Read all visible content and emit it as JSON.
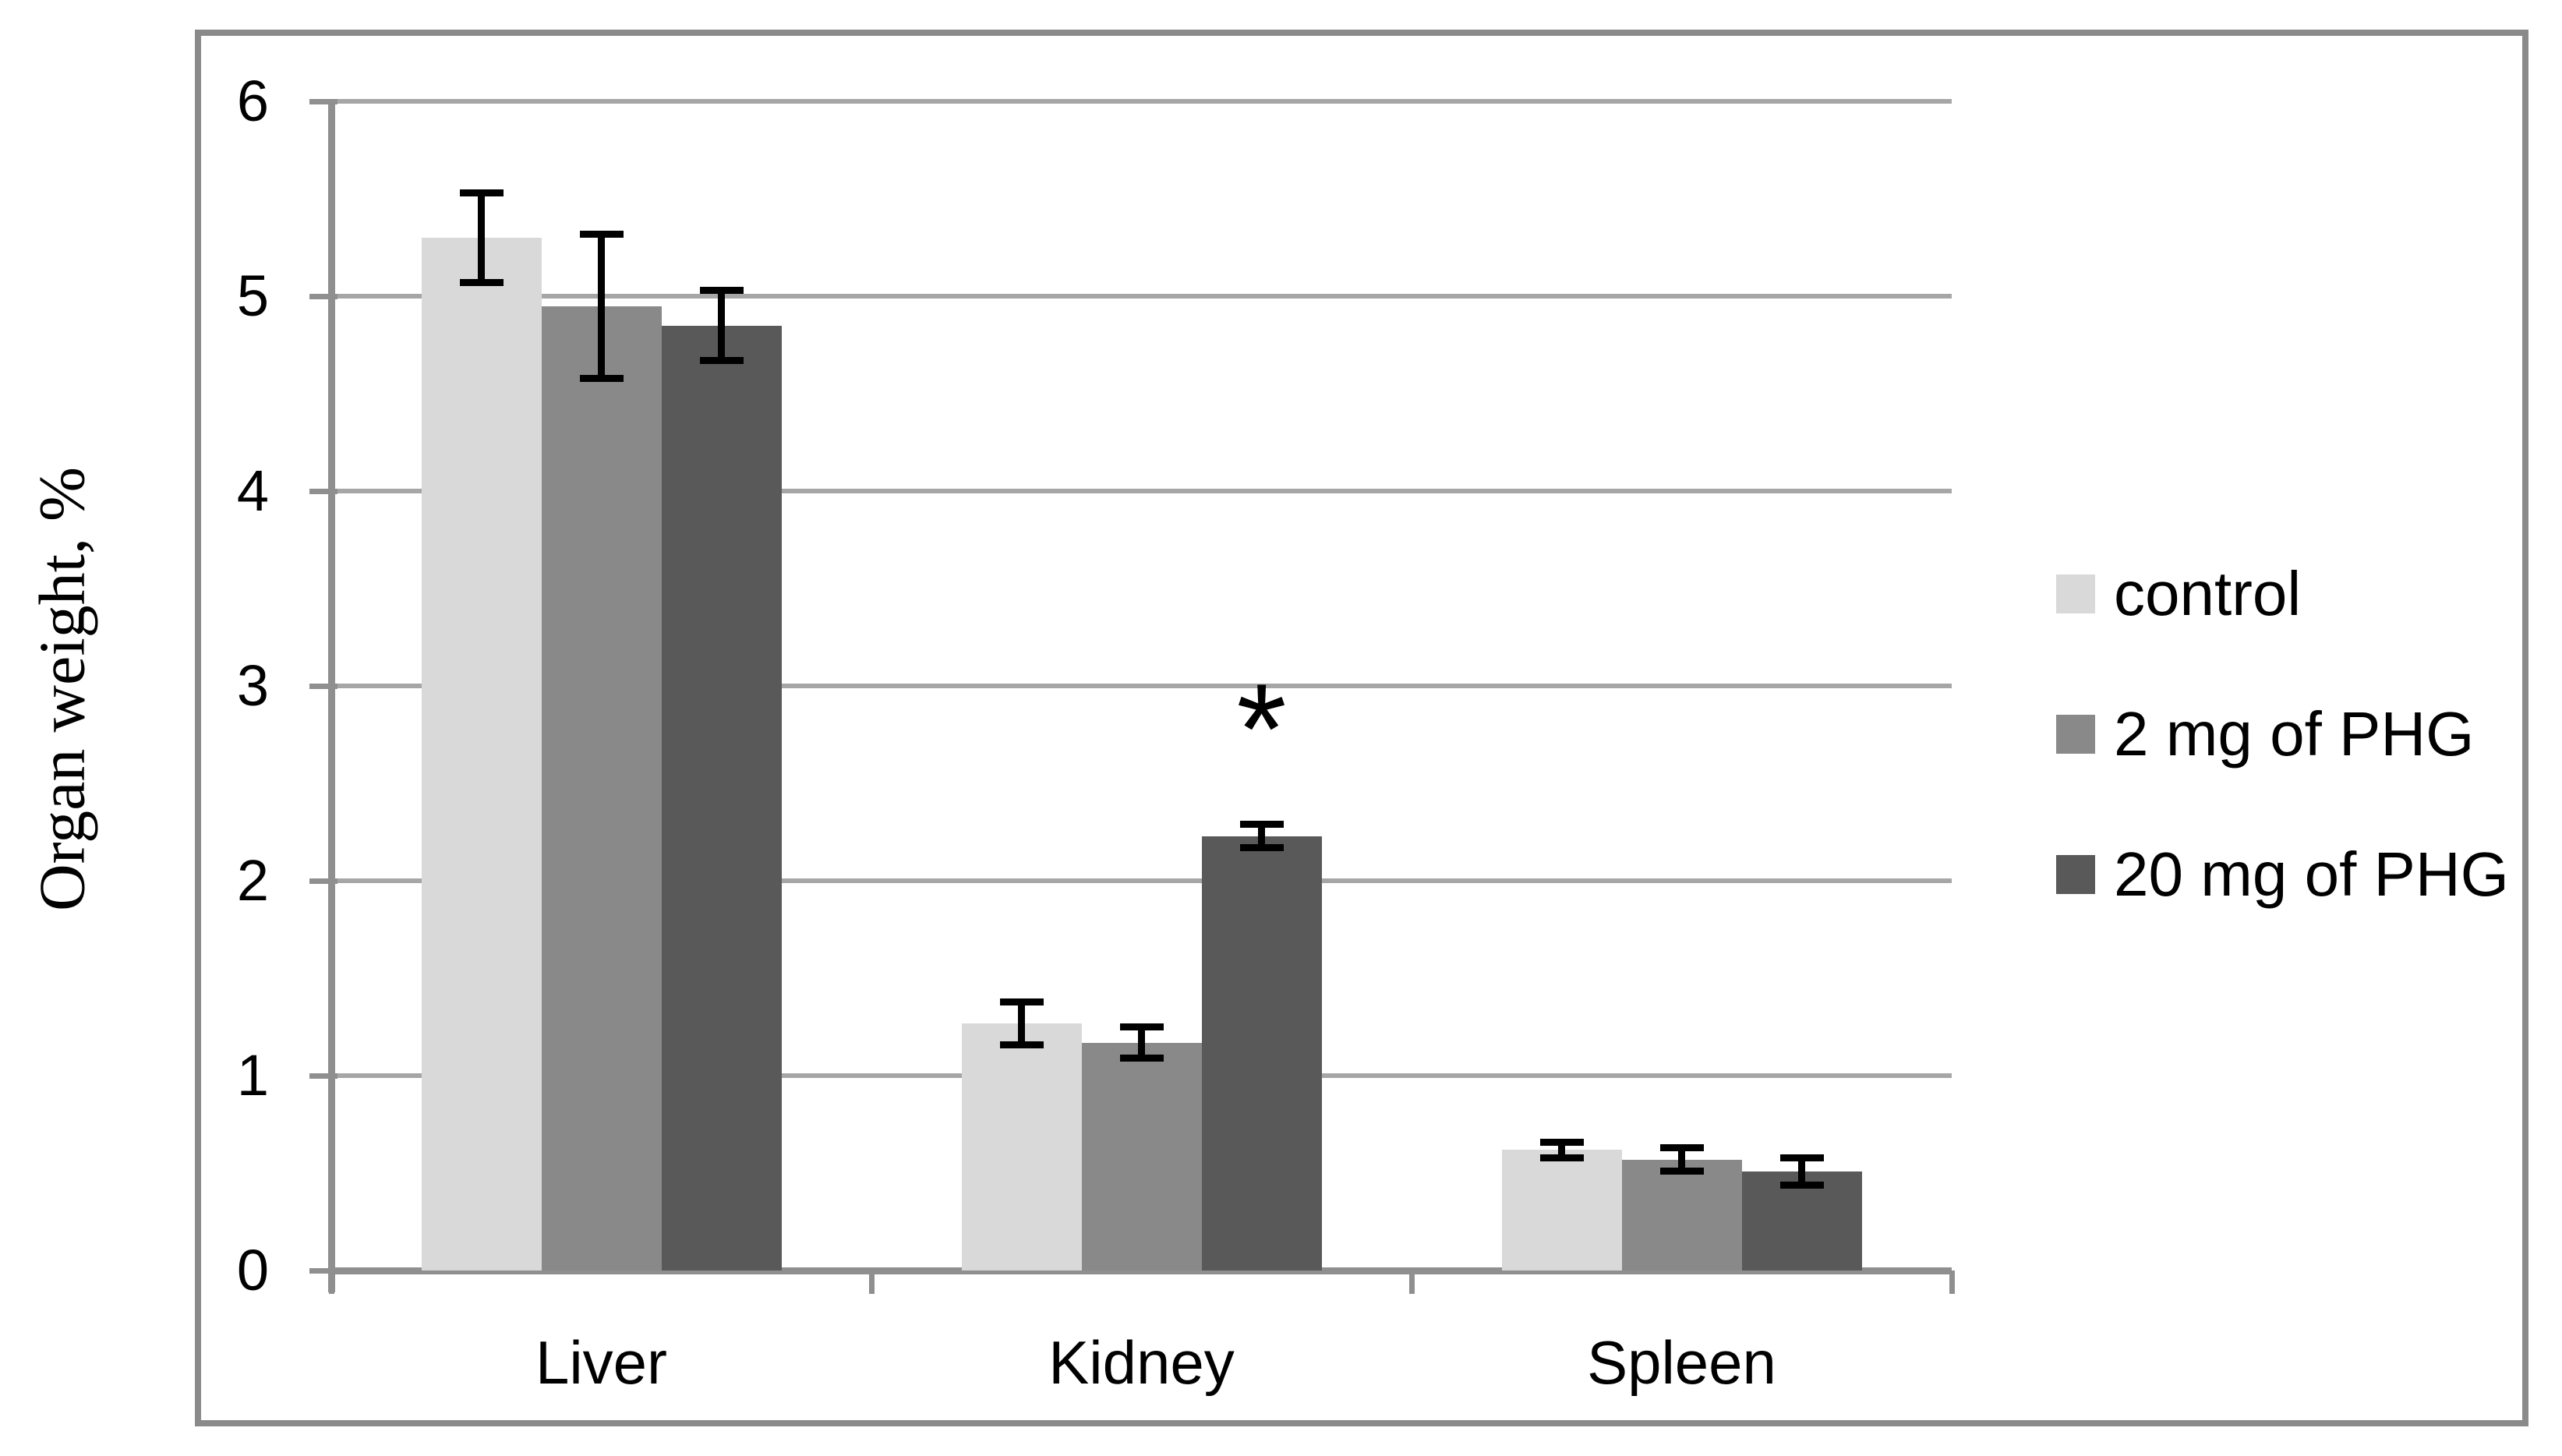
{
  "chart_data": {
    "type": "bar",
    "title": "",
    "xlabel": "",
    "ylabel": "Organ weight, %",
    "ylim": [
      0,
      6
    ],
    "yticks": [
      0,
      1,
      2,
      3,
      4,
      5,
      6
    ],
    "grid": true,
    "legend_position": "right-outside",
    "categories": [
      "Liver",
      "Kidney",
      "Spleen"
    ],
    "series": [
      {
        "name": "control",
        "color": "#d9d9d9",
        "values": [
          5.3,
          1.27,
          0.62
        ],
        "errors": [
          0.23,
          0.11,
          0.04
        ]
      },
      {
        "name": "2 mg of PHG",
        "color": "#898989",
        "values": [
          4.95,
          1.17,
          0.57
        ],
        "errors": [
          0.37,
          0.08,
          0.06
        ]
      },
      {
        "name": "20 mg of PHG",
        "color": "#595959",
        "values": [
          4.85,
          2.23,
          0.51
        ],
        "errors": [
          0.18,
          0.06,
          0.07
        ]
      }
    ],
    "annotations": [
      {
        "text": "*",
        "category": "Kidney",
        "series": "20 mg of PHG",
        "value": 2.85
      }
    ],
    "colors": {
      "gridline": "#a6a6a6",
      "axis": "#8f8f8f",
      "border": "#8a8a8a",
      "error_bar": "#000000",
      "text": "#000000"
    }
  }
}
